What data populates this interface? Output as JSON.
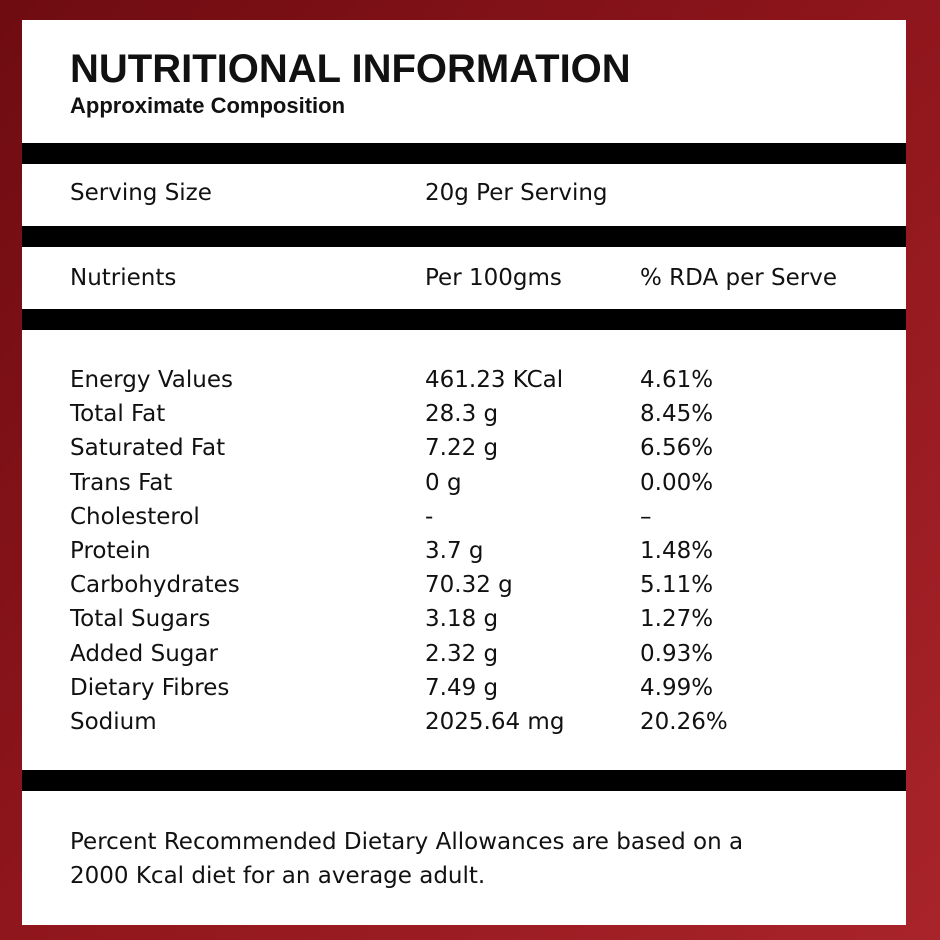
{
  "header": {
    "title": "NUTRITIONAL INFORMATION",
    "subtitle": "Approximate Composition"
  },
  "serving": {
    "label": "Serving Size",
    "value": "20g Per Serving"
  },
  "table": {
    "columns": [
      "Nutrients",
      "Per 100gms",
      "% RDA per Serve"
    ],
    "rows": [
      [
        "Energy Values",
        "461.23 KCal",
        "4.61%"
      ],
      [
        "Total Fat",
        "28.3 g",
        "8.45%"
      ],
      [
        "Saturated Fat",
        "7.22 g",
        "6.56%"
      ],
      [
        "Trans Fat",
        "0 g",
        "0.00%"
      ],
      [
        "Cholesterol",
        "-",
        "–"
      ],
      [
        "Protein",
        "3.7 g",
        "1.48%"
      ],
      [
        "Carbohydrates",
        "70.32 g",
        "5.11%"
      ],
      [
        "Total Sugars",
        "3.18 g",
        "1.27%"
      ],
      [
        "Added Sugar",
        "2.32 g",
        "0.93%"
      ],
      [
        "Dietary Fibres",
        "7.49 g",
        "4.99%"
      ],
      [
        "Sodium",
        "2025.64 mg",
        "20.26%"
      ]
    ]
  },
  "footnote": [
    "Percent Recommended Dietary Allowances are based on a",
    "2000 Kcal diet for an average adult."
  ]
}
